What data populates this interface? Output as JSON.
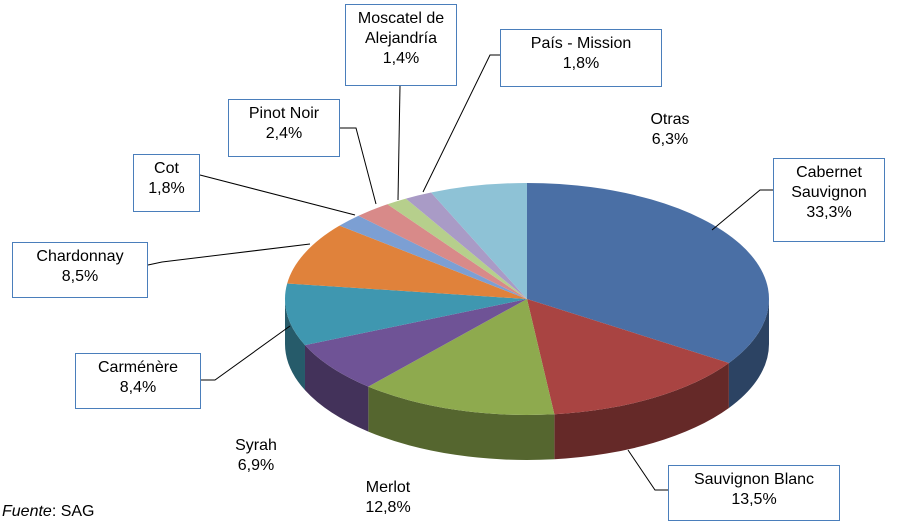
{
  "chart_data": {
    "type": "pie",
    "categories": [
      "Cabernet Sauvignon",
      "Sauvignon Blanc",
      "Merlot",
      "Syrah",
      "Carménère",
      "Chardonnay",
      "Cot",
      "Pinot Noir",
      "Moscatel de Alejandría",
      "País - Mission",
      "Otras"
    ],
    "values": [
      33.3,
      13.5,
      12.8,
      6.9,
      8.4,
      8.5,
      1.8,
      2.4,
      1.4,
      1.8,
      6.3
    ],
    "value_labels": [
      "33,3%",
      "13,5%",
      "12,8%",
      "6,9%",
      "8,4%",
      "8,5%",
      "1,8%",
      "2,4%",
      "1,4%",
      "1,8%",
      "6,3%"
    ],
    "colors": [
      "#4a6fa5",
      "#a94442",
      "#8eaa4e",
      "#6f5396",
      "#3f97b0",
      "#e0823b",
      "#7c9fd3",
      "#d88a89",
      "#b6cf8c",
      "#a99bc6",
      "#8ec2d6"
    ],
    "source_label": "Fuente",
    "source_text": ": SAG"
  }
}
